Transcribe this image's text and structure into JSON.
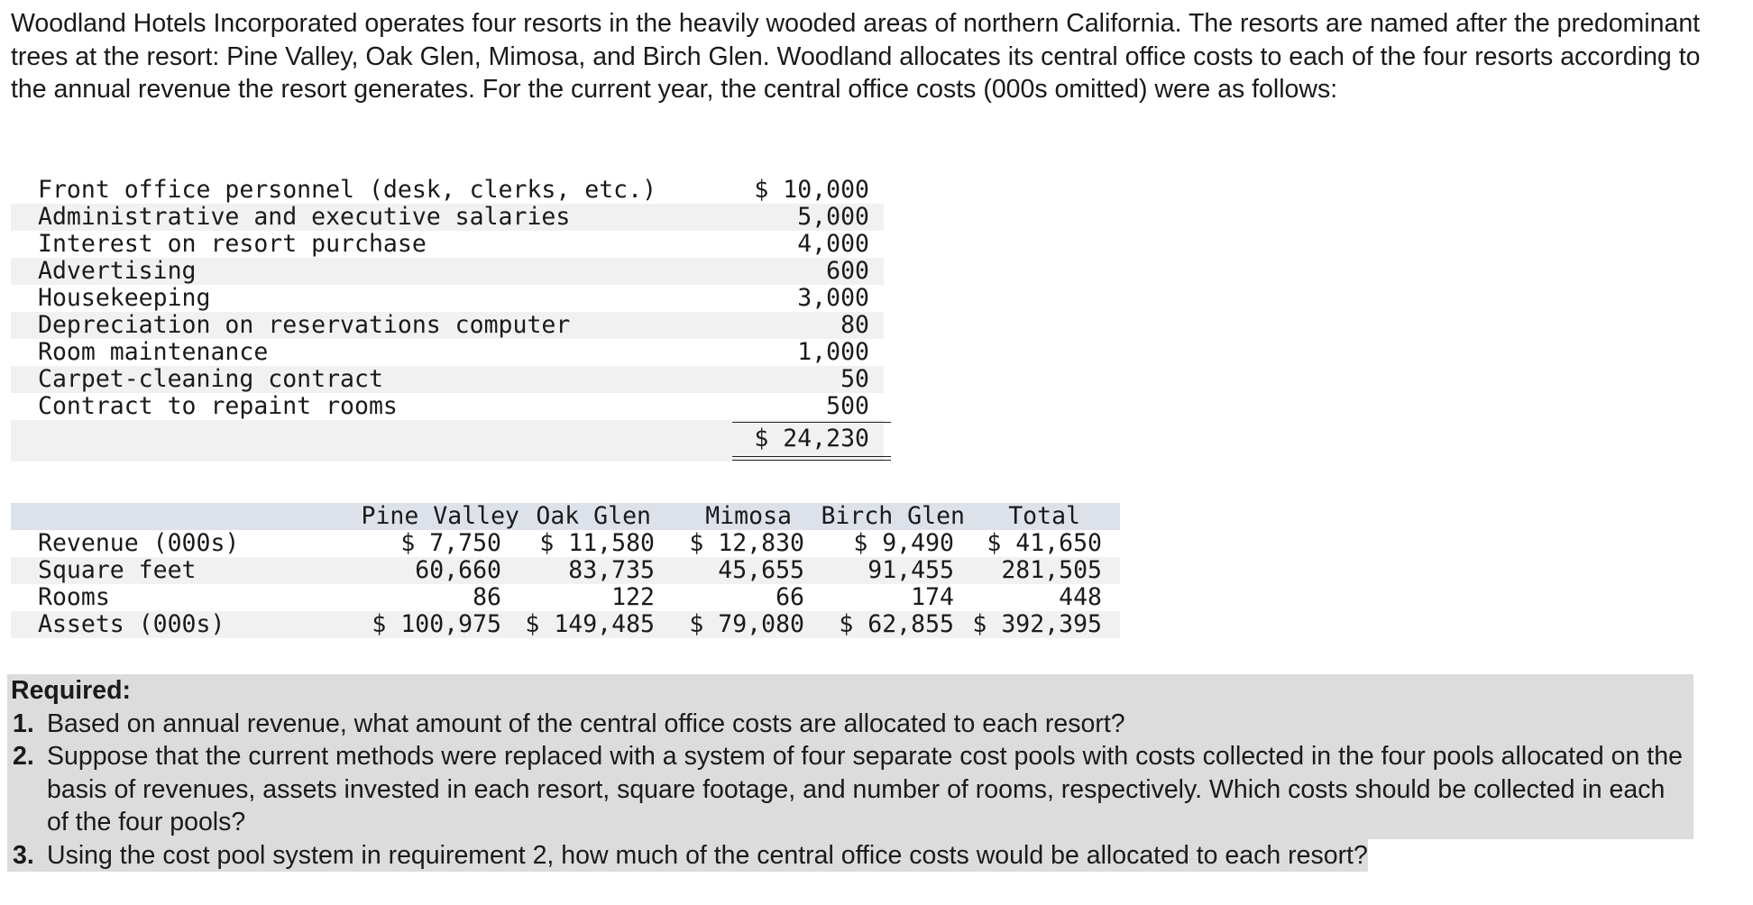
{
  "intro": "Woodland Hotels Incorporated operates four resorts in the heavily wooded areas of northern California. The resorts are named after the predominant trees at the resort: Pine Valley, Oak Glen, Mimosa, and Birch Glen. Woodland allocates its central office costs to each of the four resorts according to the annual revenue the resort generates. For the current year, the central office costs (000s omitted) were as follows:",
  "costs": [
    {
      "label": "Front office personnel (desk, clerks, etc.)",
      "amount": "$ 10,000"
    },
    {
      "label": "Administrative and executive salaries",
      "amount": "5,000"
    },
    {
      "label": "Interest on resort purchase",
      "amount": "4,000"
    },
    {
      "label": "Advertising",
      "amount": "600"
    },
    {
      "label": "Housekeeping",
      "amount": "3,000"
    },
    {
      "label": "Depreciation on reservations computer",
      "amount": "80"
    },
    {
      "label": "Room maintenance",
      "amount": "1,000"
    },
    {
      "label": "Carpet-cleaning contract",
      "amount": "50"
    },
    {
      "label": "Contract to repaint rooms",
      "amount": "500"
    }
  ],
  "cost_total": "$ 24,230",
  "resort_table": {
    "headers": [
      "Pine Valley",
      "Oak Glen",
      "Mimosa",
      "Birch Glen",
      "Total"
    ],
    "rows": [
      {
        "label": "Revenue (000s)",
        "values": [
          "$ 7,750",
          "$ 11,580",
          "$ 12,830",
          "$ 9,490",
          "$ 41,650"
        ]
      },
      {
        "label": "Square feet",
        "values": [
          "60,660",
          "83,735",
          "45,655",
          "91,455",
          "281,505"
        ]
      },
      {
        "label": "Rooms",
        "values": [
          "86",
          "122",
          "66",
          "174",
          "448"
        ]
      },
      {
        "label": "Assets (000s)",
        "values": [
          "$ 100,975",
          "$ 149,485",
          "$ 79,080",
          "$ 62,855",
          "$ 392,395"
        ]
      }
    ]
  },
  "required": {
    "title": "Required:",
    "items": [
      {
        "num": "1.",
        "text": "Based on annual revenue, what amount of the central office costs are allocated to each resort?"
      },
      {
        "num": "2.",
        "text": "Suppose that the current methods were replaced with a system of four separate cost pools with costs collected in the four pools allocated on the basis of revenues, assets invested in each resort, square footage, and number of rooms, respectively. Which costs should be collected in each of the four pools?"
      },
      {
        "num": "3.",
        "text": "Using the cost pool system in requirement 2, how much of the central office costs would be allocated to each resort?"
      }
    ]
  }
}
